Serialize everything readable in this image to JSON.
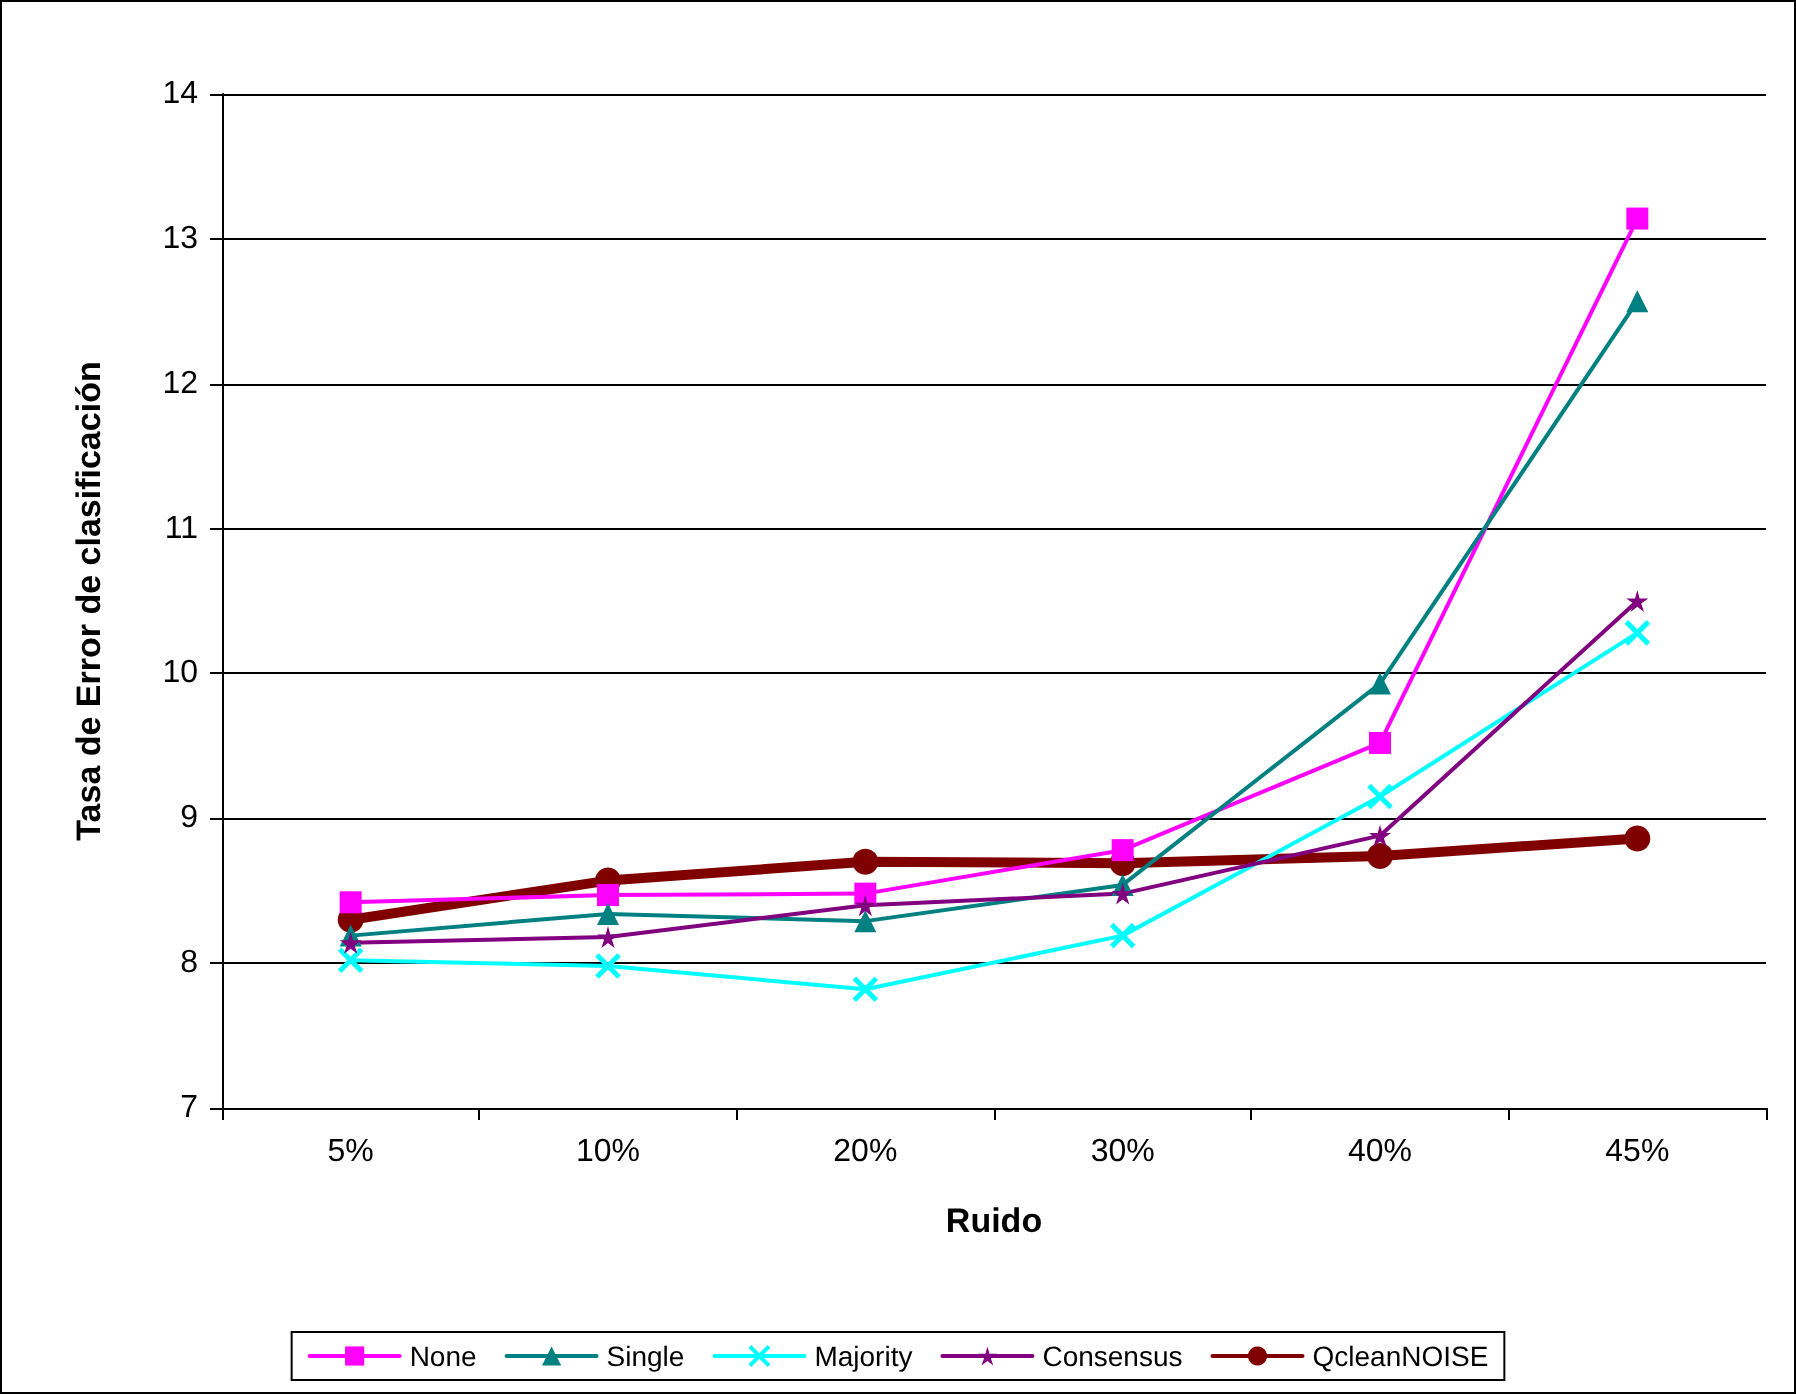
{
  "chart_data": {
    "type": "line",
    "xlabel": "Ruido",
    "ylabel": "Tasa de Error de clasificación",
    "categories": [
      "5%",
      "10%",
      "20%",
      "30%",
      "40%",
      "45%"
    ],
    "series": [
      {
        "name": "None",
        "color": "#ff00ff",
        "marker": "square",
        "values": [
          8.42,
          8.47,
          8.48,
          8.78,
          9.52,
          13.14
        ]
      },
      {
        "name": "Single",
        "color": "#008080",
        "marker": "triangle",
        "values": [
          8.19,
          8.34,
          8.29,
          8.54,
          9.93,
          12.57
        ]
      },
      {
        "name": "Majority",
        "color": "#00ffff",
        "marker": "cross",
        "values": [
          8.02,
          7.98,
          7.82,
          8.19,
          9.15,
          10.28
        ]
      },
      {
        "name": "Consensus",
        "color": "#800080",
        "marker": "star",
        "values": [
          8.14,
          8.18,
          8.4,
          8.48,
          8.88,
          10.5
        ]
      },
      {
        "name": "QcleanNOISE",
        "color": "#800000",
        "marker": "circle",
        "values": [
          8.3,
          8.57,
          8.7,
          8.69,
          8.74,
          8.86
        ]
      }
    ],
    "ylim": [
      7,
      14
    ],
    "yticks": [
      7,
      8,
      9,
      10,
      11,
      12,
      13,
      14
    ],
    "grid": "y",
    "legend": "bottom",
    "line_style": "solid"
  }
}
